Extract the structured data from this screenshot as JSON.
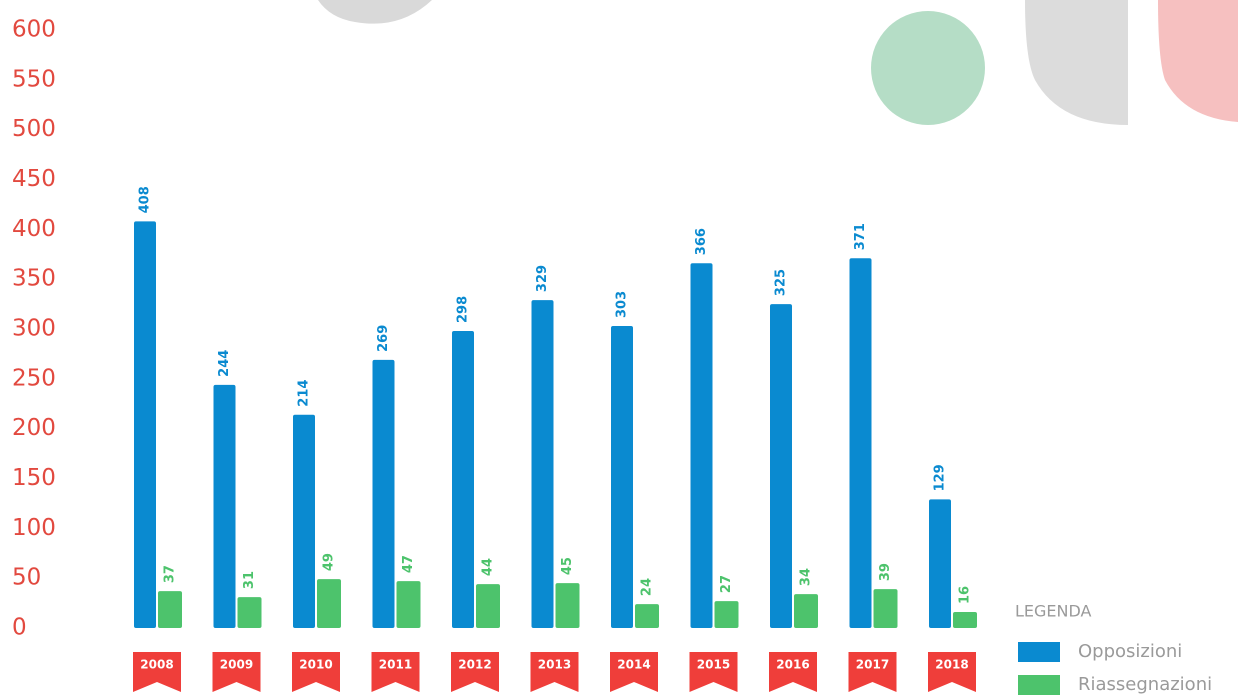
{
  "chart_data": {
    "type": "bar",
    "categories": [
      "2008",
      "2009",
      "2010",
      "2011",
      "2012",
      "2013",
      "2014",
      "2015",
      "2016",
      "2017",
      "2018"
    ],
    "series": [
      {
        "name": "Opposizioni",
        "color": "#0a8ad0",
        "values": [
          408,
          244,
          214,
          269,
          298,
          329,
          303,
          366,
          325,
          371,
          129
        ]
      },
      {
        "name": "Riassegnazioni",
        "color": "#4dc36c",
        "values": [
          37,
          31,
          49,
          47,
          44,
          45,
          24,
          27,
          34,
          39,
          16
        ]
      }
    ],
    "legend_title": "LEGENDA",
    "ylim": [
      0,
      600
    ],
    "yticks": [
      0,
      50,
      100,
      150,
      200,
      250,
      300,
      350,
      400,
      450,
      500,
      550,
      600
    ],
    "grid": false,
    "tag_color": "#ef3e3a"
  }
}
